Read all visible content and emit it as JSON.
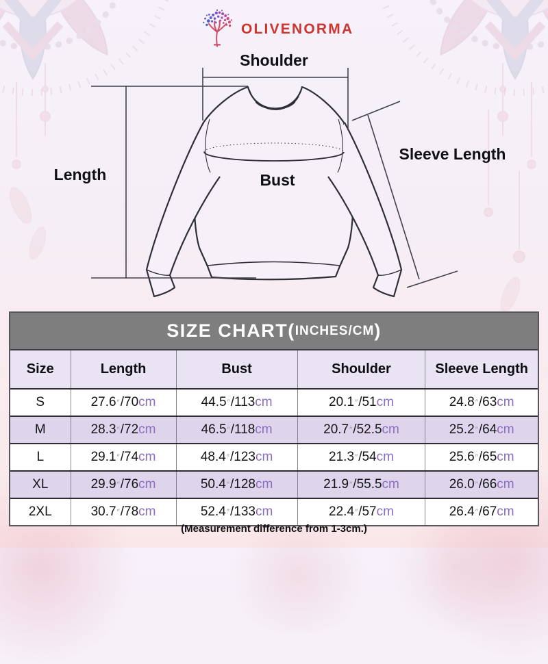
{
  "brand": {
    "name": "OLIVENORMA",
    "logo_icon": "tree-icon",
    "brand_color": "#cd352f"
  },
  "diagram": {
    "labels": {
      "shoulder": "Shoulder",
      "length": "Length",
      "bust": "Bust",
      "sleeve_length": "Sleeve Length"
    }
  },
  "size_chart": {
    "title_main": "SIZE CHART(",
    "title_units": "INCHES/CM",
    "title_close": ")",
    "columns": [
      "Size",
      "Length",
      "Bust",
      "Shoulder",
      "Sleeve Length"
    ],
    "unit_inch_mark": "″",
    "separator": "/",
    "unit_cm_label": "cm",
    "rows": [
      {
        "size": "S",
        "measurements": [
          {
            "in": "27.6",
            "cm": "70"
          },
          {
            "in": "44.5",
            "cm": "113"
          },
          {
            "in": "20.1",
            "cm": "51"
          },
          {
            "in": "24.8",
            "cm": "63"
          }
        ]
      },
      {
        "size": "M",
        "measurements": [
          {
            "in": "28.3",
            "cm": "72"
          },
          {
            "in": "46.5",
            "cm": "118"
          },
          {
            "in": "20.7",
            "cm": "52.5"
          },
          {
            "in": "25.2",
            "cm": "64"
          }
        ]
      },
      {
        "size": "L",
        "measurements": [
          {
            "in": "29.1",
            "cm": "74"
          },
          {
            "in": "48.4",
            "cm": "123"
          },
          {
            "in": "21.3",
            "cm": "54"
          },
          {
            "in": "25.6",
            "cm": "65"
          }
        ]
      },
      {
        "size": "XL",
        "measurements": [
          {
            "in": "29.9",
            "cm": "76"
          },
          {
            "in": "50.4",
            "cm": "128"
          },
          {
            "in": "21.9",
            "cm": "55.5"
          },
          {
            "in": "26.0",
            "cm": "66"
          }
        ]
      },
      {
        "size": "2XL",
        "measurements": [
          {
            "in": "30.7",
            "cm": "78"
          },
          {
            "in": "52.4",
            "cm": "133"
          },
          {
            "in": "22.4",
            "cm": "57"
          },
          {
            "in": "26.4",
            "cm": "67"
          }
        ]
      }
    ]
  },
  "chart_data": {
    "type": "table",
    "title": "SIZE CHART(INCHES/CM)",
    "columns": [
      "Size",
      "Length",
      "Bust",
      "Shoulder",
      "Sleeve Length"
    ],
    "rows": [
      [
        "S",
        "27.6\"/70cm",
        "44.5\"/113cm",
        "20.1\"/51cm",
        "24.8\"/63cm"
      ],
      [
        "M",
        "28.3\"/72cm",
        "46.5\"/118cm",
        "20.7\"/52.5cm",
        "25.2\"/64cm"
      ],
      [
        "L",
        "29.1\"/74cm",
        "48.4\"/123cm",
        "21.3\"/54cm",
        "25.6\"/65cm"
      ],
      [
        "XL",
        "29.9\"/76cm",
        "50.4\"/128cm",
        "21.9\"/55.5cm",
        "26.0\"/66cm"
      ],
      [
        "2XL",
        "30.7\"/78cm",
        "52.4\"/133cm",
        "22.4\"/57cm",
        "26.4\"/67cm"
      ]
    ]
  },
  "footer": {
    "note": "(Measurement difference from 1-3cm.)"
  },
  "colors": {
    "accent_purple": "#8c6cc0",
    "header_gray": "#7e7e7e",
    "row_lavender": "#ded5ec",
    "header_row_lavender": "#eae3f3"
  }
}
